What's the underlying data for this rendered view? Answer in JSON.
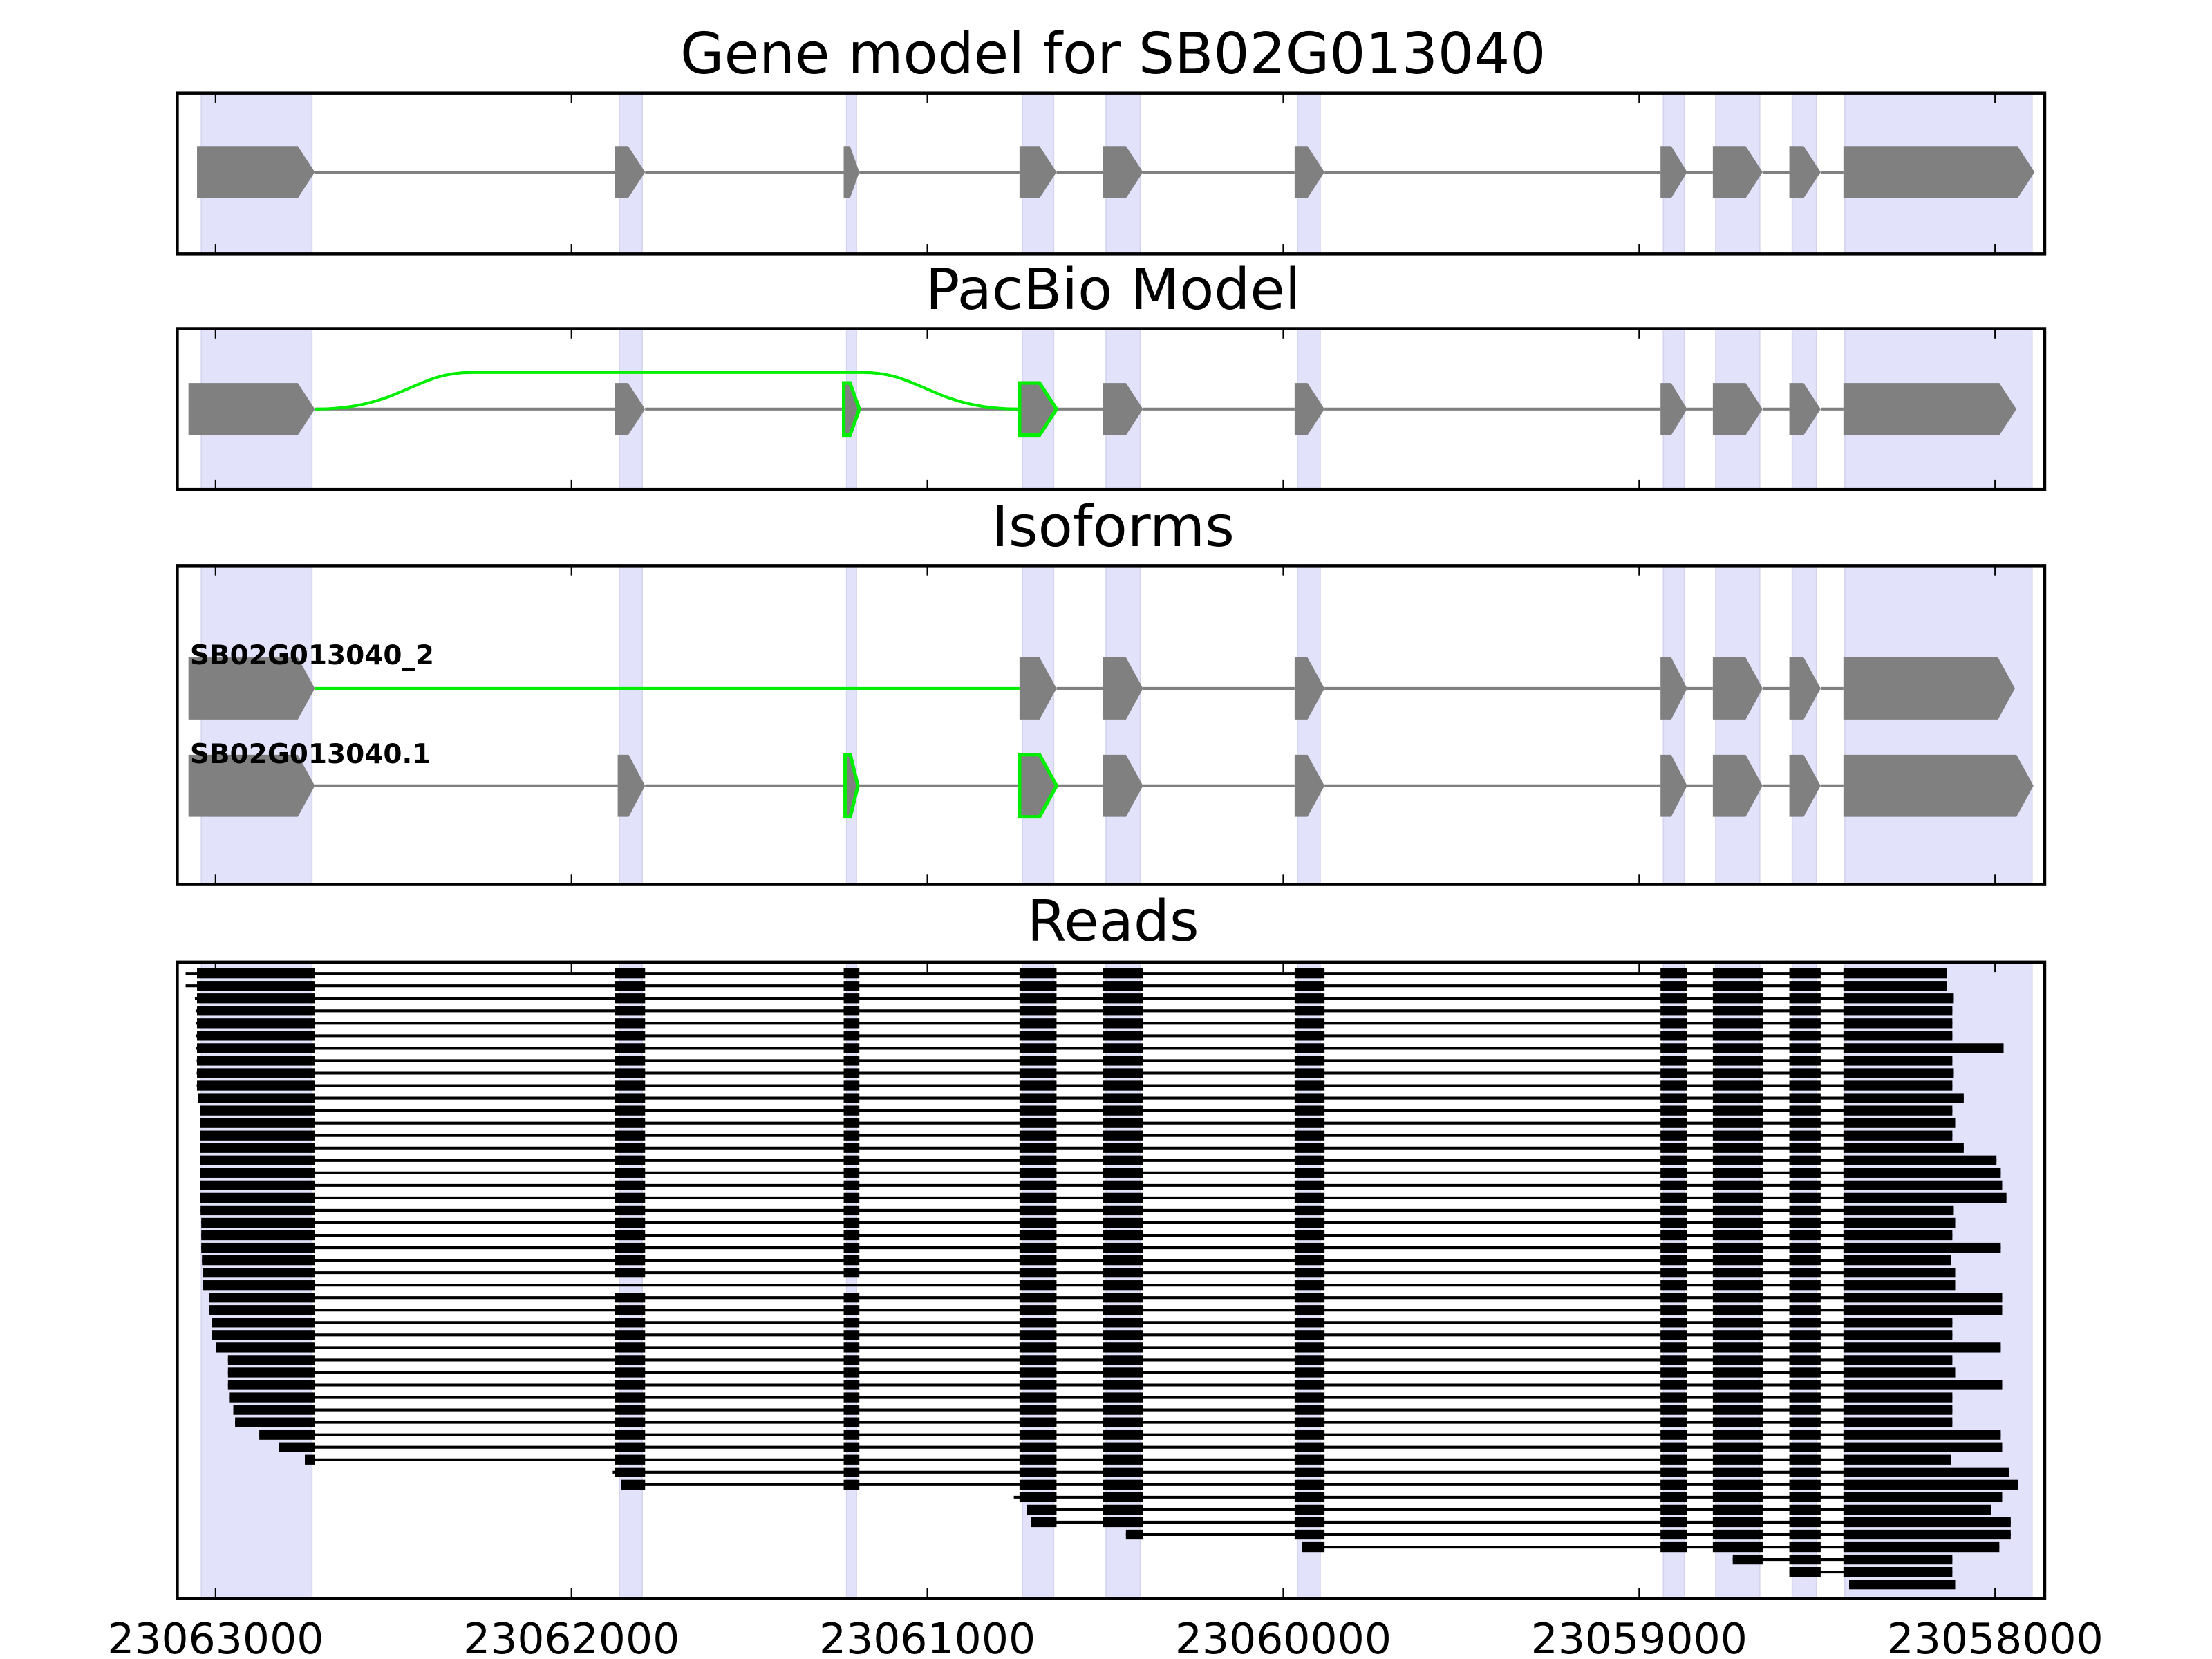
{
  "chart_data": {
    "type": "gene-track",
    "title": "Gene model for SB02G013040",
    "xlim": [
      23063108,
      23057861
    ],
    "x_ticks": [
      23063000,
      23062000,
      23061000,
      23060000,
      23059000,
      23058000
    ],
    "x_tick_labels": [
      "23063000",
      "23062000",
      "23061000",
      "23060000",
      "23059000",
      "23058000"
    ],
    "colors": {
      "exon": "#808080",
      "intron": "#808080",
      "highlight": "#00ee00",
      "shade": "#e2e2fa",
      "read": "#000000"
    },
    "shaded_regions": [
      [
        23063040,
        23062729
      ],
      [
        23061865,
        23061801
      ],
      [
        23061227,
        23061199
      ],
      [
        23060733,
        23060645
      ],
      [
        23060498,
        23060402
      ],
      [
        23059960,
        23059896
      ],
      [
        23058932,
        23058873
      ],
      [
        23058785,
        23058661
      ],
      [
        23058570,
        23058502
      ],
      [
        23058422,
        23057896
      ]
    ],
    "panels": {
      "gene_model": {
        "title": "Gene model for SB02G013040",
        "exons": [
          [
            23063052,
            23062721
          ],
          [
            23061877,
            23061793
          ],
          [
            23061235,
            23061191
          ],
          [
            23060741,
            23060637
          ],
          [
            23060506,
            23060394
          ],
          [
            23059968,
            23059884
          ],
          [
            23058940,
            23058865
          ],
          [
            23058793,
            23058653
          ],
          [
            23058578,
            23058490
          ],
          [
            23058426,
            23057889
          ]
        ]
      },
      "pacbio_model": {
        "title": "PacBio Model",
        "exons": [
          [
            23063076,
            23062721
          ],
          [
            23061877,
            23061793
          ],
          [
            23061235,
            23061191
          ],
          [
            23060741,
            23060637
          ],
          [
            23060506,
            23060394
          ],
          [
            23059968,
            23059884
          ],
          [
            23058940,
            23058865
          ],
          [
            23058793,
            23058653
          ],
          [
            23058578,
            23058490
          ],
          [
            23058426,
            23057940
          ]
        ],
        "highlighted_exons": [
          2,
          3
        ],
        "skip_junction": [
          23062721,
          23060741
        ]
      },
      "isoforms": {
        "title": "Isoforms",
        "items": [
          {
            "name": "SB02G013040_2",
            "exons": [
              [
                23063076,
                23062721
              ],
              [
                23060741,
                23060637
              ],
              [
                23060506,
                23060394
              ],
              [
                23059968,
                23059884
              ],
              [
                23058940,
                23058865
              ],
              [
                23058793,
                23058653
              ],
              [
                23058578,
                23058490
              ],
              [
                23058426,
                23057944
              ]
            ],
            "highlighted_exons": [],
            "highlighted_introns": [
              1
            ]
          },
          {
            "name": "SB02G013040.1",
            "exons": [
              [
                23063076,
                23062721
              ],
              [
                23061870,
                23061793
              ],
              [
                23061231,
                23061195
              ],
              [
                23060741,
                23060637
              ],
              [
                23060506,
                23060394
              ],
              [
                23059968,
                23059884
              ],
              [
                23058940,
                23058865
              ],
              [
                23058793,
                23058653
              ],
              [
                23058578,
                23058490
              ],
              [
                23058426,
                23057892
              ]
            ],
            "highlighted_exons": [
              2,
              3
            ],
            "highlighted_introns": []
          }
        ]
      },
      "reads": {
        "title": "Reads",
        "items": [
          [
            23063084,
            23058136
          ],
          [
            23063084,
            23058136
          ],
          [
            23063058,
            23058116
          ],
          [
            23063056,
            23058120
          ],
          [
            23063056,
            23058120
          ],
          [
            23063056,
            23058120
          ],
          [
            23063056,
            23057976
          ],
          [
            23063053,
            23058120
          ],
          [
            23063053,
            23058116
          ],
          [
            23063053,
            23058120
          ],
          [
            23063049,
            23058088
          ],
          [
            23063044,
            23058120
          ],
          [
            23063044,
            23058112
          ],
          [
            23063044,
            23058120
          ],
          [
            23063044,
            23058088
          ],
          [
            23063044,
            23057996
          ],
          [
            23063044,
            23057984
          ],
          [
            23063044,
            23057980
          ],
          [
            23063044,
            23057968
          ],
          [
            23063042,
            23058116
          ],
          [
            23063040,
            23058112
          ],
          [
            23063040,
            23058120
          ],
          [
            23063040,
            23057984
          ],
          [
            23063038,
            23058124
          ],
          [
            23063036,
            23058112
          ],
          [
            23063035,
            23058112,
            [
              2,
              3
            ]
          ],
          [
            23063017,
            23057980
          ],
          [
            23063017,
            23057980
          ],
          [
            23063010,
            23058120
          ],
          [
            23063010,
            23058120
          ],
          [
            23062998,
            23057984
          ],
          [
            23062965,
            23058120
          ],
          [
            23062965,
            23058112
          ],
          [
            23062965,
            23057980
          ],
          [
            23062960,
            23058120
          ],
          [
            23062950,
            23058120
          ],
          [
            23062945,
            23058120
          ],
          [
            23062877,
            23057984
          ],
          [
            23062822,
            23057980
          ],
          [
            23062749,
            23058124
          ],
          [
            23061884,
            23057960
          ],
          [
            23061861,
            23057936
          ],
          [
            23060757,
            23057980
          ],
          [
            23060721,
            23058012
          ],
          [
            23060709,
            23057956
          ],
          [
            23060442,
            23057956
          ],
          [
            23059948,
            23057988
          ],
          [
            23058737,
            23058120
          ],
          [
            23058578,
            23058120
          ],
          [
            23058410,
            23058112
          ]
        ]
      }
    }
  }
}
